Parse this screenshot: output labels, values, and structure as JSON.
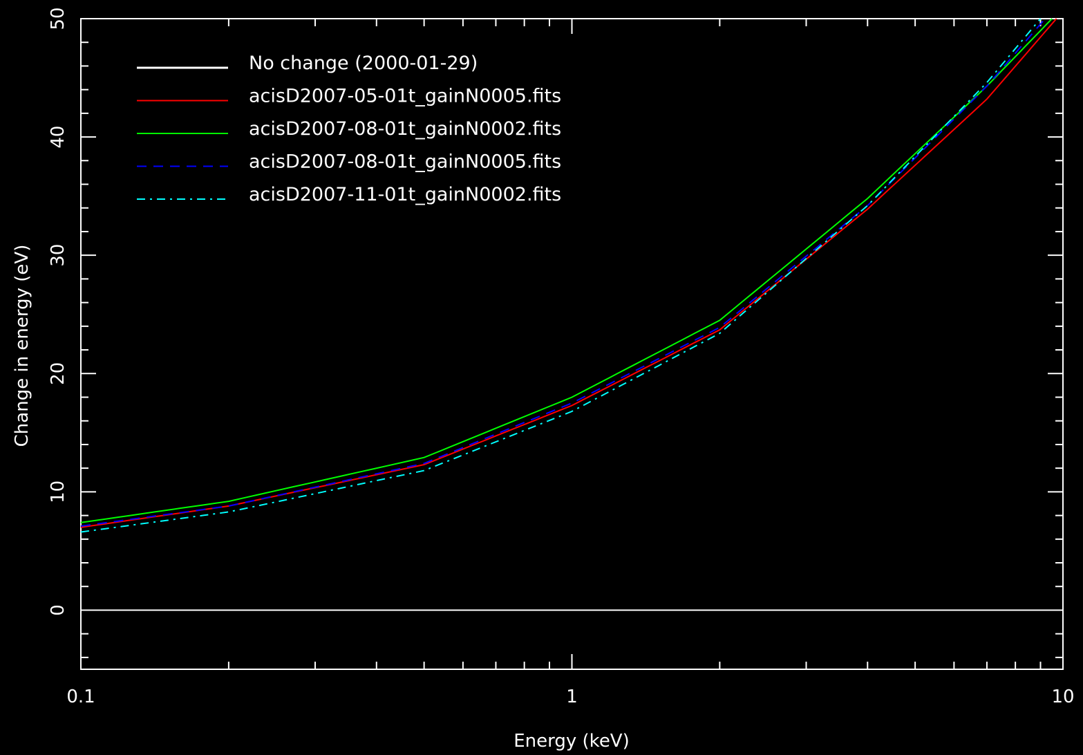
{
  "chart_data": {
    "type": "line",
    "xlabel": "Energy (keV)",
    "ylabel": "Change in energy (eV)",
    "x_scale": "log",
    "xlim": [
      0.1,
      10
    ],
    "ylim": [
      -5,
      50
    ],
    "x_ticks": [
      "0.1",
      "1",
      "10"
    ],
    "y_ticks": [
      "0",
      "10",
      "20",
      "30",
      "40",
      "50"
    ],
    "legend_position": "top-left",
    "grid": false,
    "background_color": "#000000",
    "series": [
      {
        "name": "No change (2000-01-29)",
        "color": "#ffffff",
        "dash": "solid",
        "x": [
          0.1,
          10
        ],
        "y": [
          0,
          0
        ]
      },
      {
        "name": "acisD2007-05-01t_gainN0005.fits",
        "color": "#ff0000",
        "dash": "solid",
        "x": [
          0.1,
          0.2,
          0.5,
          1,
          2,
          4,
          7,
          9.7
        ],
        "y": [
          7.0,
          8.8,
          12.3,
          17.3,
          23.7,
          33.9,
          43.2,
          50.0
        ]
      },
      {
        "name": "acisD2007-08-01t_gainN0002.fits",
        "color": "#00ff00",
        "dash": "solid",
        "x": [
          0.1,
          0.2,
          0.5,
          1,
          2,
          4,
          7,
          9.5
        ],
        "y": [
          7.4,
          9.2,
          12.9,
          18.0,
          24.5,
          34.8,
          44.3,
          50.0
        ]
      },
      {
        "name": "acisD2007-08-01t_gainN0005.fits",
        "color": "#0000ff",
        "dash": "dashed",
        "x": [
          0.1,
          0.2,
          0.5,
          1,
          2,
          4,
          7,
          9.2
        ],
        "y": [
          7.1,
          8.8,
          12.4,
          17.5,
          23.9,
          34.2,
          44.3,
          50.0
        ]
      },
      {
        "name": "acisD2007-11-01t_gainN0002.fits",
        "color": "#00ffff",
        "dash": "dashdot",
        "x": [
          0.1,
          0.2,
          0.5,
          1,
          2,
          4,
          7,
          9.0
        ],
        "y": [
          6.6,
          8.3,
          11.8,
          16.8,
          23.4,
          34.2,
          44.6,
          50.0
        ]
      }
    ]
  }
}
